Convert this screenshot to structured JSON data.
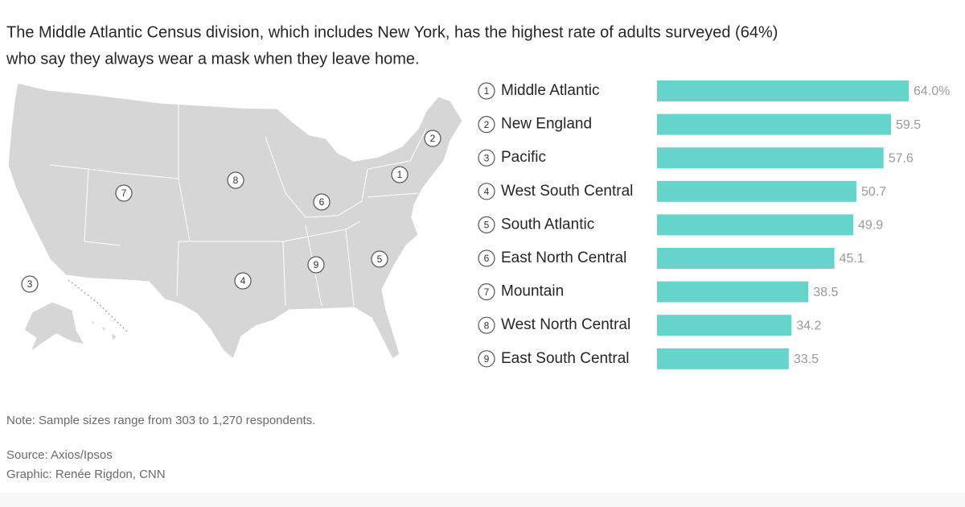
{
  "title_lines": [
    "The Middle Atlantic Census division, which includes New York, has the highest rate of adults surveyed (64%)",
    "who say they always wear a mask when they leave home."
  ],
  "chart_data": {
    "type": "bar",
    "orientation": "horizontal",
    "ranks": [
      "1",
      "2",
      "3",
      "4",
      "5",
      "6",
      "7",
      "8",
      "9"
    ],
    "categories": [
      "Middle Atlantic",
      "New England",
      "Pacific",
      "West South Central",
      "South Atlantic",
      "East North Central",
      "Mountain",
      "West North Central",
      "East South Central"
    ],
    "values": [
      64.0,
      59.5,
      57.6,
      50.7,
      49.9,
      45.1,
      38.5,
      34.2,
      33.5
    ],
    "value_labels": [
      "64.0%",
      "59.5",
      "57.6",
      "50.7",
      "49.9",
      "45.1",
      "38.5",
      "34.2",
      "33.5"
    ],
    "color": "#66d4cb"
  },
  "note": "Note: Sample sizes range from 303 to 1,270 respondents.",
  "source": "Source: Axios/Ipsos",
  "credit": "Graphic: Renée Rigdon, CNN"
}
